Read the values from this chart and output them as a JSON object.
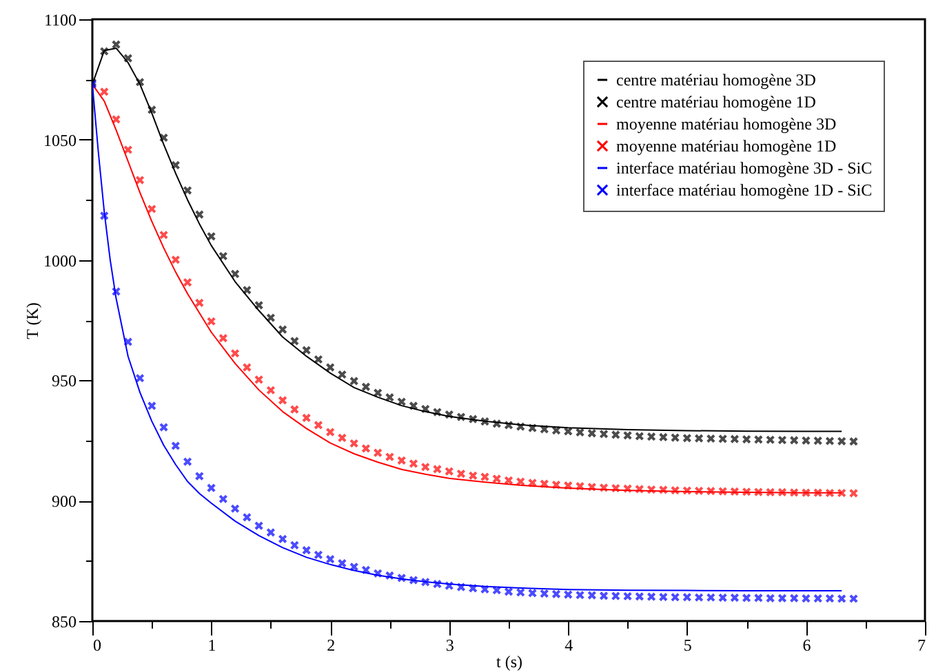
{
  "chart_data": {
    "type": "line",
    "xlabel": "t (s)",
    "ylabel": "T (K)",
    "xlim": [
      0,
      7
    ],
    "ylim": [
      850,
      1100
    ],
    "xticks": [
      0,
      {
        "value": 0.5,
        "label": null
      },
      1,
      {
        "value": 1.5,
        "label": null
      },
      2,
      {
        "value": 2.5,
        "label": null
      },
      3,
      {
        "value": 3.5,
        "label": null
      },
      4,
      {
        "value": 4.5,
        "label": null
      },
      5,
      {
        "value": 5.5,
        "label": null
      },
      6,
      {
        "value": 6.5,
        "label": null
      },
      7
    ],
    "yticks": [
      850,
      {
        "value": 875,
        "label": null
      },
      900,
      {
        "value": 925,
        "label": null
      },
      950,
      {
        "value": 975,
        "label": null
      },
      1000,
      {
        "value": 1025,
        "label": null
      },
      1050,
      {
        "value": 1075,
        "label": null
      },
      1100
    ],
    "grid": false,
    "legend": "top right",
    "series": [
      {
        "name": "centre matériau homogène 3D",
        "color": "#000000",
        "x": [
          0,
          0.1,
          0.2,
          0.3,
          0.4,
          0.5,
          0.6,
          0.7,
          0.8,
          0.9,
          1.0,
          1.2,
          1.4,
          1.6,
          1.8,
          2.0,
          2.2,
          2.4,
          2.6,
          2.8,
          3.0,
          3.3,
          3.6,
          4.0,
          4.5,
          5.0,
          5.5,
          6.0,
          6.3
        ],
        "values": [
          1073,
          1087,
          1088,
          1082,
          1073,
          1061,
          1048,
          1036,
          1025,
          1015,
          1006,
          991,
          979,
          968,
          960,
          953,
          947,
          943,
          939.5,
          937,
          935,
          933,
          931.5,
          930.3,
          929.5,
          929.1,
          928.9,
          928.8,
          928.8
        ]
      },
      {
        "name": "centre matériau homogène 1D",
        "type": "scatter",
        "color": "#000000",
        "marker": "cross",
        "x": [
          0,
          0.1,
          0.2,
          0.3,
          0.4,
          0.5,
          0.6,
          0.7,
          0.8,
          0.9,
          1.0,
          1.1,
          1.2,
          1.3,
          1.4,
          1.5,
          1.6,
          1.7,
          1.8,
          1.9,
          2.0,
          2.1,
          2.2,
          2.3,
          2.4,
          2.5,
          2.6,
          2.7,
          2.8,
          2.9,
          3.0,
          3.1,
          3.2,
          3.3,
          3.4,
          3.5,
          3.6,
          3.7,
          3.8,
          3.9,
          4.0,
          4.1,
          4.2,
          4.3,
          4.4,
          4.5,
          4.6,
          4.7,
          4.8,
          4.9,
          5.0,
          5.1,
          5.2,
          5.3,
          5.4,
          5.5,
          5.6,
          5.7,
          5.8,
          5.9,
          6.0,
          6.1,
          6.2,
          6.3,
          6.4
        ],
        "values": [
          1073.7,
          1086.7,
          1089.5,
          1083.8,
          1073.9,
          1062.4,
          1050.8,
          1039.4,
          1028.9,
          1018.9,
          1009.8,
          1001.6,
          994.2,
          987.5,
          981.2,
          976.0,
          971.1,
          966.3,
          962.5,
          958.7,
          955.4,
          952.4,
          949.7,
          947.3,
          944.8,
          942.9,
          941.1,
          939.4,
          938.1,
          936.8,
          935.8,
          934.8,
          933.9,
          932.9,
          932.0,
          931.4,
          930.8,
          930.2,
          929.7,
          929.2,
          928.8,
          928.4,
          928.0,
          927.7,
          927.4,
          927.1,
          926.8,
          926.6,
          926.4,
          926.2,
          926.0,
          925.9,
          925.8,
          925.7,
          925.6,
          925.5,
          925.4,
          925.3,
          925.2,
          925.1,
          925.0,
          924.9,
          924.8,
          924.7,
          924.6
        ]
      },
      {
        "name": "moyenne matériau homogène 3D",
        "color": "#ff0000",
        "x": [
          0,
          0.1,
          0.2,
          0.3,
          0.4,
          0.5,
          0.6,
          0.7,
          0.8,
          0.9,
          1.0,
          1.2,
          1.4,
          1.6,
          1.8,
          2.0,
          2.2,
          2.4,
          2.6,
          2.8,
          3.0,
          3.3,
          3.6,
          4.0,
          4.5,
          5.0,
          5.5,
          6.0,
          6.3
        ],
        "values": [
          1073,
          1066,
          1054,
          1041,
          1028,
          1016,
          1005,
          995,
          986,
          978,
          970,
          957,
          946,
          937,
          930,
          924,
          919.5,
          916,
          913,
          911,
          909.3,
          907.7,
          906.4,
          905.2,
          904.3,
          903.8,
          903.5,
          903.3,
          903.3
        ]
      },
      {
        "name": "moyenne matériau homogène 1D",
        "type": "scatter",
        "color": "#ff0000",
        "marker": "cross",
        "x": [
          0.1,
          0.2,
          0.3,
          0.4,
          0.5,
          0.6,
          0.7,
          0.8,
          0.9,
          1.0,
          1.1,
          1.2,
          1.3,
          1.4,
          1.5,
          1.6,
          1.7,
          1.8,
          1.9,
          2.0,
          2.1,
          2.2,
          2.3,
          2.4,
          2.5,
          2.6,
          2.7,
          2.8,
          2.9,
          3.0,
          3.1,
          3.2,
          3.3,
          3.4,
          3.5,
          3.6,
          3.7,
          3.8,
          3.9,
          4.0,
          4.1,
          4.2,
          4.3,
          4.4,
          4.5,
          4.6,
          4.7,
          4.8,
          4.9,
          5.0,
          5.1,
          5.2,
          5.3,
          5.4,
          5.5,
          5.6,
          5.7,
          5.8,
          5.9,
          6.0,
          6.1,
          6.2,
          6.3,
          6.4
        ],
        "values": [
          1069.9,
          1058.4,
          1045.8,
          1033.2,
          1021.2,
          1010.4,
          1000.1,
          990.7,
          982.2,
          974.5,
          967.5,
          961.2,
          955.4,
          950.3,
          945.9,
          941.7,
          937.9,
          934.4,
          931.4,
          928.5,
          926.1,
          923.8,
          921.7,
          919.9,
          918.2,
          916.7,
          915.4,
          914.0,
          913.1,
          912.2,
          911.2,
          910.4,
          909.9,
          909.1,
          908.4,
          907.9,
          907.4,
          907.0,
          906.6,
          906.3,
          906.0,
          905.7,
          905.4,
          905.2,
          905.0,
          904.8,
          904.6,
          904.5,
          904.3,
          904.2,
          904.1,
          904.0,
          903.9,
          903.8,
          903.7,
          903.6,
          903.5,
          903.5,
          903.4,
          903.3,
          903.3,
          903.2,
          903.2,
          903.1
        ]
      },
      {
        "name": "interface matériau homogène 3D - SiC",
        "color": "#0000ff",
        "x": [
          0,
          0.05,
          0.1,
          0.15,
          0.2,
          0.3,
          0.4,
          0.5,
          0.6,
          0.7,
          0.8,
          0.9,
          1.0,
          1.2,
          1.4,
          1.6,
          1.8,
          2.0,
          2.2,
          2.4,
          2.6,
          2.8,
          3.0,
          3.3,
          3.6,
          4.0,
          4.5,
          5.0,
          5.5,
          6.0,
          6.3
        ],
        "values": [
          1073,
          1045,
          1020,
          1000,
          984,
          960,
          945,
          933,
          923,
          915,
          908,
          903,
          899,
          891.5,
          885.5,
          880.5,
          876.5,
          873.5,
          871,
          869,
          867.5,
          866.3,
          865.4,
          864.4,
          863.7,
          863.1,
          862.8,
          862.7,
          862.6,
          862.6,
          862.6
        ]
      },
      {
        "name": "interface matériau homogène 1D - SiC",
        "type": "scatter",
        "color": "#0000ff",
        "marker": "cross",
        "x": [
          0,
          0.1,
          0.2,
          0.3,
          0.4,
          0.5,
          0.6,
          0.7,
          0.8,
          0.9,
          1.0,
          1.1,
          1.2,
          1.3,
          1.4,
          1.5,
          1.6,
          1.7,
          1.8,
          1.9,
          2.0,
          2.1,
          2.2,
          2.3,
          2.4,
          2.5,
          2.6,
          2.7,
          2.8,
          2.9,
          3.0,
          3.1,
          3.2,
          3.3,
          3.4,
          3.5,
          3.6,
          3.7,
          3.8,
          3.9,
          4.0,
          4.1,
          4.2,
          4.3,
          4.4,
          4.5,
          4.6,
          4.7,
          4.8,
          4.9,
          5.0,
          5.1,
          5.2,
          5.3,
          5.4,
          5.5,
          5.6,
          5.7,
          5.8,
          5.9,
          6.0,
          6.1,
          6.2,
          6.3,
          6.4
        ],
        "values": [
          1073,
          1018.4,
          986.9,
          966.0,
          950.9,
          939.4,
          930.5,
          922.8,
          916.2,
          910.2,
          905.3,
          900.7,
          896.7,
          893.1,
          889.6,
          886.8,
          884.1,
          881.5,
          879.4,
          877.5,
          875.7,
          874.0,
          872.5,
          871.2,
          869.8,
          868.9,
          867.9,
          867.0,
          866.2,
          865.4,
          864.7,
          864.1,
          863.6,
          863.2,
          862.8,
          862.2,
          861.9,
          861.6,
          861.4,
          861.2,
          861.0,
          860.8,
          860.7,
          860.5,
          860.4,
          860.3,
          860.2,
          860.1,
          860.0,
          859.9,
          859.9,
          859.8,
          859.8,
          859.7,
          859.7,
          859.6,
          859.6,
          859.5,
          859.5,
          859.5,
          859.4,
          859.4,
          859.4,
          859.3,
          859.3
        ]
      }
    ]
  }
}
